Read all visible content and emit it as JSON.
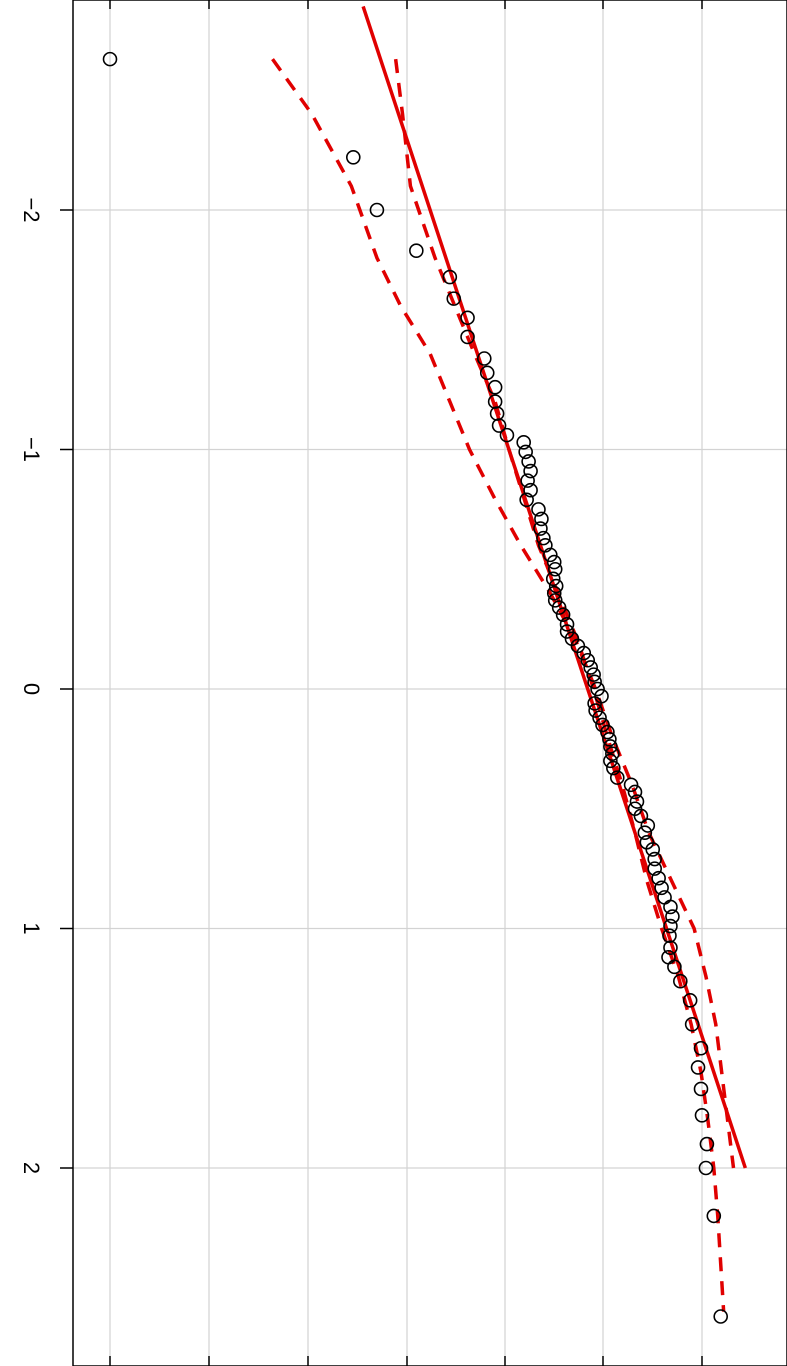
{
  "chart_data": {
    "type": "scatter",
    "title": "",
    "xlabel": "",
    "ylabel": "",
    "orientation": "rotated-90",
    "x_ticks": [
      "-2",
      "-1",
      "0",
      "1",
      "2"
    ],
    "x_range": [
      -2.7,
      2.7
    ],
    "y_range": [
      -1.9,
      4.3
    ],
    "grid": true,
    "colors": {
      "points": "#000000",
      "reference_line": "#e00000",
      "envelope": "#e00000",
      "grid": "#d3d3d3"
    },
    "points": [
      [
        -2.63,
        -1.85
      ],
      [
        -2.22,
        0.62
      ],
      [
        -2.0,
        0.86
      ],
      [
        -1.83,
        1.26
      ],
      [
        -1.72,
        1.6
      ],
      [
        -1.63,
        1.64
      ],
      [
        -1.55,
        1.78
      ],
      [
        -1.47,
        1.78
      ],
      [
        -1.38,
        1.95
      ],
      [
        -1.32,
        1.98
      ],
      [
        -1.26,
        2.06
      ],
      [
        -1.2,
        2.06
      ],
      [
        -1.15,
        2.08
      ],
      [
        -1.1,
        2.1
      ],
      [
        -1.06,
        2.18
      ],
      [
        -1.03,
        2.35
      ],
      [
        -0.99,
        2.37
      ],
      [
        -0.95,
        2.4
      ],
      [
        -0.91,
        2.42
      ],
      [
        -0.87,
        2.39
      ],
      [
        -0.83,
        2.42
      ],
      [
        -0.79,
        2.38
      ],
      [
        -0.75,
        2.5
      ],
      [
        -0.71,
        2.53
      ],
      [
        -0.67,
        2.52
      ],
      [
        -0.63,
        2.55
      ],
      [
        -0.6,
        2.57
      ],
      [
        -0.56,
        2.62
      ],
      [
        -0.53,
        2.66
      ],
      [
        -0.5,
        2.67
      ],
      [
        -0.46,
        2.65
      ],
      [
        -0.43,
        2.68
      ],
      [
        -0.4,
        2.66
      ],
      [
        -0.37,
        2.67
      ],
      [
        -0.34,
        2.71
      ],
      [
        -0.31,
        2.75
      ],
      [
        -0.27,
        2.79
      ],
      [
        -0.24,
        2.79
      ],
      [
        -0.21,
        2.84
      ],
      [
        -0.18,
        2.9
      ],
      [
        -0.15,
        2.96
      ],
      [
        -0.12,
        3.0
      ],
      [
        -0.09,
        3.03
      ],
      [
        -0.06,
        3.06
      ],
      [
        -0.03,
        3.07
      ],
      [
        0.0,
        3.1
      ],
      [
        0.03,
        3.14
      ],
      [
        0.06,
        3.07
      ],
      [
        0.09,
        3.08
      ],
      [
        0.12,
        3.12
      ],
      [
        0.15,
        3.15
      ],
      [
        0.18,
        3.2
      ],
      [
        0.21,
        3.22
      ],
      [
        0.24,
        3.23
      ],
      [
        0.27,
        3.25
      ],
      [
        0.3,
        3.23
      ],
      [
        0.33,
        3.26
      ],
      [
        0.37,
        3.3
      ],
      [
        0.4,
        3.44
      ],
      [
        0.43,
        3.48
      ],
      [
        0.47,
        3.5
      ],
      [
        0.5,
        3.48
      ],
      [
        0.53,
        3.54
      ],
      [
        0.57,
        3.61
      ],
      [
        0.6,
        3.58
      ],
      [
        0.64,
        3.6
      ],
      [
        0.67,
        3.66
      ],
      [
        0.71,
        3.68
      ],
      [
        0.75,
        3.68
      ],
      [
        0.79,
        3.72
      ],
      [
        0.83,
        3.75
      ],
      [
        0.87,
        3.78
      ],
      [
        0.91,
        3.84
      ],
      [
        0.95,
        3.86
      ],
      [
        0.99,
        3.84
      ],
      [
        1.03,
        3.83
      ],
      [
        1.08,
        3.84
      ],
      [
        1.12,
        3.82
      ],
      [
        1.16,
        3.88
      ],
      [
        1.22,
        3.94
      ],
      [
        1.3,
        4.04
      ],
      [
        1.4,
        4.06
      ],
      [
        1.5,
        4.15
      ],
      [
        1.58,
        4.12
      ],
      [
        1.67,
        4.15
      ],
      [
        1.78,
        4.16
      ],
      [
        1.9,
        4.21
      ],
      [
        2.0,
        4.2
      ],
      [
        2.2,
        4.28
      ],
      [
        2.62,
        4.35
      ]
    ],
    "reference_line": {
      "intercept": 3.0,
      "slope": 0.8
    },
    "envelope": {
      "upper": [
        [
          -2.63,
          1.05
        ],
        [
          -2.4,
          1.12
        ],
        [
          -2.1,
          1.2
        ],
        [
          -1.8,
          1.45
        ],
        [
          -1.6,
          1.65
        ],
        [
          -1.4,
          1.85
        ],
        [
          -1.2,
          2.06
        ],
        [
          -1.0,
          2.2
        ],
        [
          -0.8,
          2.35
        ],
        [
          -0.6,
          2.5
        ],
        [
          -0.4,
          2.7
        ],
        [
          -0.2,
          2.9
        ],
        [
          0.0,
          3.06
        ],
        [
          0.2,
          3.2
        ],
        [
          0.4,
          3.35
        ],
        [
          0.6,
          3.48
        ],
        [
          0.8,
          3.6
        ],
        [
          1.0,
          3.75
        ],
        [
          1.2,
          3.92
        ],
        [
          1.4,
          4.05
        ],
        [
          1.6,
          4.15
        ],
        [
          1.8,
          4.22
        ],
        [
          2.0,
          4.28
        ],
        [
          2.2,
          4.32
        ],
        [
          2.4,
          4.35
        ],
        [
          2.6,
          4.38
        ]
      ],
      "lower": [
        [
          -2.63,
          -0.2
        ],
        [
          -2.4,
          0.2
        ],
        [
          -2.1,
          0.6
        ],
        [
          -1.8,
          0.86
        ],
        [
          -1.6,
          1.1
        ],
        [
          -1.4,
          1.4
        ],
        [
          -1.2,
          1.6
        ],
        [
          -1.0,
          1.8
        ],
        [
          -0.8,
          2.05
        ],
        [
          -0.6,
          2.32
        ],
        [
          -0.4,
          2.62
        ],
        [
          -0.2,
          2.88
        ],
        [
          0.0,
          3.08
        ],
        [
          0.2,
          3.25
        ],
        [
          0.4,
          3.45
        ],
        [
          0.6,
          3.62
        ],
        [
          0.8,
          3.85
        ],
        [
          1.0,
          4.08
        ],
        [
          1.2,
          4.2
        ],
        [
          1.4,
          4.3
        ],
        [
          1.6,
          4.36
        ],
        [
          1.8,
          4.42
        ],
        [
          2.0,
          4.48
        ]
      ]
    }
  }
}
